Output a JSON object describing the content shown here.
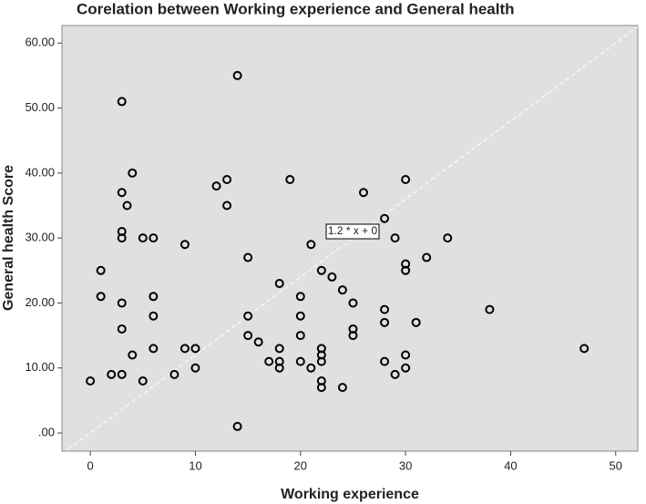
{
  "chart_data": {
    "type": "scatter",
    "title": "Corelation between Working experience and General health",
    "x_label": "Working experience",
    "y_label": "General health Score",
    "xlim": [
      -2.7,
      52.1
    ],
    "ylim": [
      -2.8,
      62.7
    ],
    "xticks": [
      0,
      10,
      20,
      30,
      40,
      50
    ],
    "yticks": [
      {
        "value": 0,
        "label": ".00"
      },
      {
        "value": 10,
        "label": "10.00"
      },
      {
        "value": 20,
        "label": "20.00"
      },
      {
        "value": 30,
        "label": "30.00"
      },
      {
        "value": 40,
        "label": "40.00"
      },
      {
        "value": 50,
        "label": "50.00"
      },
      {
        "value": 60,
        "label": "60.00"
      }
    ],
    "background": "#e0e0e0",
    "color": "#000000",
    "grid": false,
    "ref_line": {
      "slope": 1.2,
      "intercept": 0,
      "label": "1.2 * x + 0",
      "color": "#ffffff"
    },
    "x": [
      0,
      1,
      1,
      2,
      3,
      3,
      3,
      3,
      3,
      3,
      3,
      3.5,
      4,
      4,
      5,
      5,
      6,
      6,
      6,
      6,
      8,
      9,
      9,
      10,
      10,
      12,
      13,
      13,
      14,
      14,
      15,
      15,
      15,
      16,
      17,
      18,
      18,
      18,
      18,
      19,
      20,
      20,
      20,
      20,
      21,
      21,
      22,
      22,
      22,
      22,
      22,
      22,
      23,
      24,
      24,
      25,
      25,
      25,
      26,
      28,
      28,
      28,
      28,
      29,
      29,
      30,
      30,
      30,
      30,
      30,
      31,
      32,
      34,
      38,
      47
    ],
    "values": [
      8,
      25,
      21,
      9,
      51,
      37,
      31,
      30,
      20,
      16,
      9,
      35,
      40,
      12,
      30,
      8,
      30,
      21,
      18,
      13,
      9,
      29,
      13,
      13,
      10,
      38,
      39,
      35,
      55,
      1,
      27,
      18,
      15,
      14,
      11,
      23,
      13,
      11,
      10,
      39,
      21,
      18,
      15,
      11,
      10,
      29,
      25,
      13,
      12,
      11,
      8,
      7,
      24,
      22,
      7,
      20,
      16,
      15,
      37,
      33,
      19,
      17,
      11,
      30,
      9,
      39,
      26,
      25,
      12,
      10,
      17,
      27,
      30,
      19,
      13
    ]
  }
}
